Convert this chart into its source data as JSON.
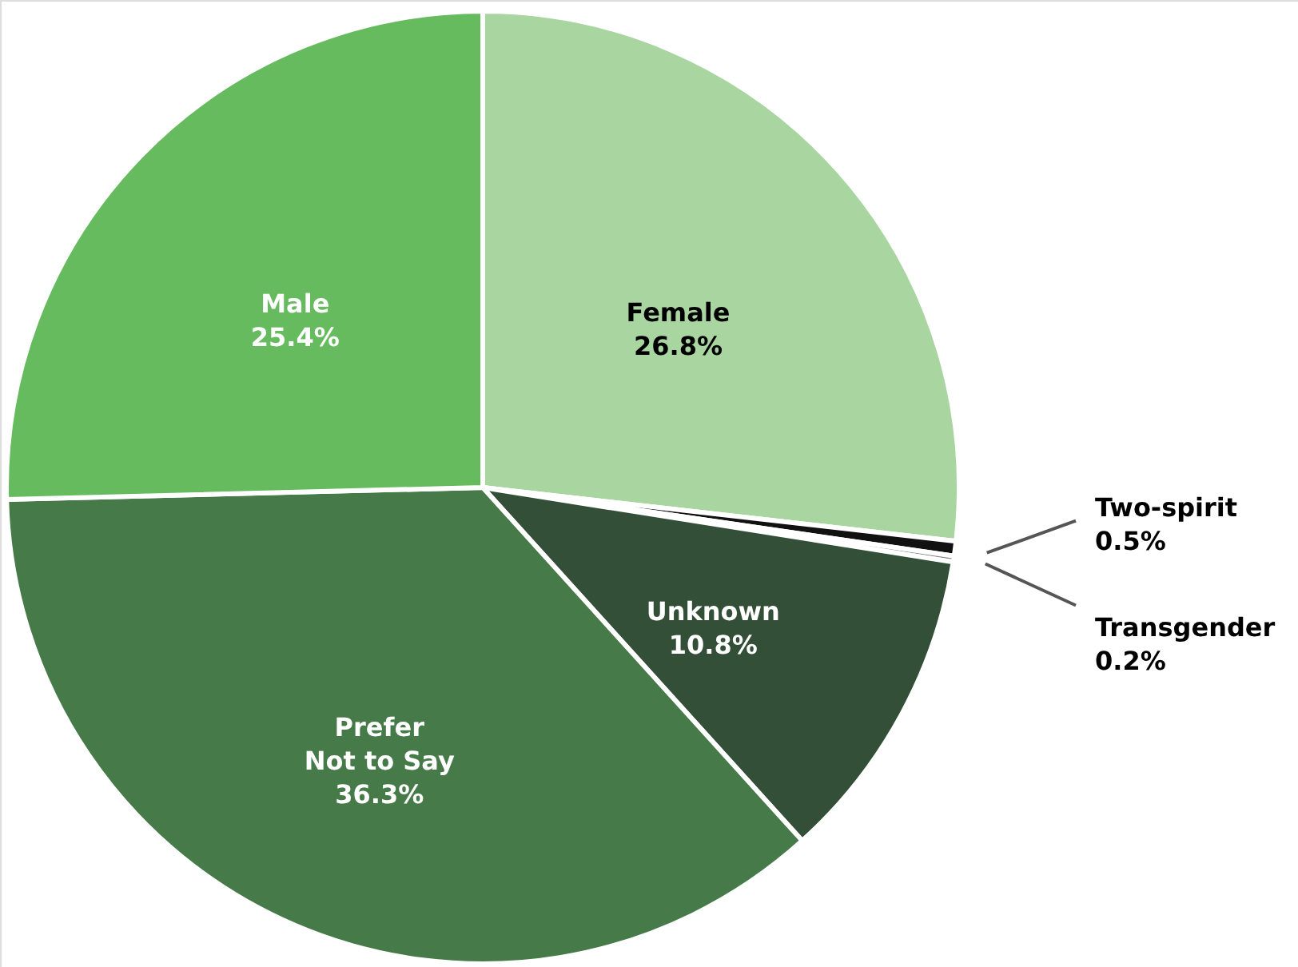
{
  "chart_data": {
    "type": "pie",
    "categories": [
      "Female",
      "Two-spirit",
      "Transgender",
      "Unknown",
      "Prefer Not to Say",
      "Male"
    ],
    "values": [
      26.8,
      0.5,
      0.2,
      10.8,
      36.3,
      25.4
    ],
    "colors": [
      "#a8d5a0",
      "#111111",
      "#8a8a8a",
      "#344f37",
      "#467a48",
      "#66bb5f"
    ],
    "value_labels": [
      "26.8%",
      "0.5%",
      "0.2%",
      "10.8%",
      "36.3%",
      "25.4%"
    ]
  }
}
